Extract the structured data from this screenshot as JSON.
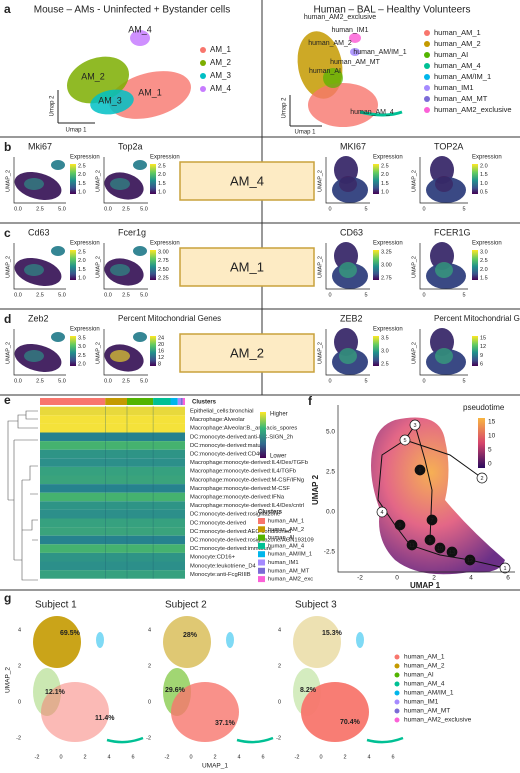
{
  "panel_a": {
    "label": "a",
    "mouse": {
      "title": "Mouse – AMs - Uninfected + Bystander cells",
      "x_label": "Umap 1",
      "y_label": "Umap 2",
      "cluster_labels": [
        "AM_4",
        "AM_2",
        "AM_3",
        "AM_1"
      ],
      "legend": [
        "AM_1",
        "AM_2",
        "AM_3",
        "AM_4"
      ]
    },
    "human": {
      "title": "Human – BAL – Healthy Volunteers",
      "x_label": "Umap 1",
      "y_label": "Umap 2",
      "cluster_labels": [
        "human_AM2_exclusive",
        "human_IM1",
        "human_AM/IM_1",
        "human_AM_2",
        "human_AM_MT",
        "human_AI",
        "human_AM_4"
      ],
      "legend": [
        "human_AM_1",
        "human_AM_2",
        "human_AI",
        "human_AM_4",
        "human_AM/IM_1",
        "human_IM1",
        "human_AM_MT",
        "human_AM2_exclusive"
      ]
    }
  },
  "feature_axes": {
    "y_label": "UMAP_2",
    "mouse_x_ticks": [
      "0.0",
      "2.5",
      "5.0"
    ],
    "human_x_ticks": [
      "0",
      "5"
    ]
  },
  "feature_rows": [
    {
      "label": "b",
      "box": "AM_4",
      "plots": [
        {
          "title": "Mki67",
          "legend_title": "Expression",
          "legend_ticks": [
            "2.5",
            "2.0",
            "1.5",
            "1.0"
          ]
        },
        {
          "title": "Top2a",
          "legend_title": "Expression",
          "legend_ticks": [
            "2.5",
            "2.0",
            "1.5",
            "1.0"
          ]
        },
        {
          "title": "MKI67",
          "legend_title": "Expression",
          "legend_ticks": [
            "2.5",
            "2.0",
            "1.5",
            "1.0"
          ]
        },
        {
          "title": "TOP2A",
          "legend_title": "Expression",
          "legend_ticks": [
            "2.0",
            "1.5",
            "1.0",
            "0.5"
          ]
        }
      ]
    },
    {
      "label": "c",
      "box": "AM_1",
      "plots": [
        {
          "title": "Cd63",
          "legend_title": "Expression",
          "legend_ticks": [
            "2.5",
            "2.0",
            "1.5",
            "1.0"
          ]
        },
        {
          "title": "Fcer1g",
          "legend_title": "Expression",
          "legend_ticks": [
            "3.00",
            "2.75",
            "2.50",
            "2.25"
          ]
        },
        {
          "title": "CD63",
          "legend_title": "Expression",
          "legend_ticks": [
            "3.25",
            "3.00",
            "2.75"
          ]
        },
        {
          "title": "FCER1G",
          "legend_title": "Expression",
          "legend_ticks": [
            "3.0",
            "2.5",
            "2.0",
            "1.5"
          ]
        }
      ]
    },
    {
      "label": "d",
      "box": "AM_2",
      "plots": [
        {
          "title": "Zeb2",
          "legend_title": "Expression",
          "legend_ticks": [
            "3.5",
            "3.0",
            "2.5",
            "2.0"
          ]
        },
        {
          "title": "Percent Mitochondrial Genes",
          "legend_ticks": [
            "24",
            "20",
            "16",
            "12",
            "8"
          ]
        },
        {
          "title": "ZEB2",
          "legend_title": "Expression",
          "legend_ticks": [
            "3.5",
            "3.0",
            "2.5"
          ]
        },
        {
          "title": "Percent Mitochondrial Genes",
          "legend_ticks": [
            "15",
            "12",
            "9",
            "6"
          ]
        }
      ]
    }
  ],
  "panel_e": {
    "label": "e",
    "clusters_bar_title": "Clusters",
    "scale_high": "Higher",
    "scale_low": "Lower",
    "rows": [
      "Epithelial_cells:bronchial",
      "Macrophage:Alveolar",
      "Macrophage:Alveolar:B._anthacis_spores",
      "DC:monocyte-derived:anti-DC-SIGN_2h",
      "DC:monocyte-derived:mature",
      "DC:monocyte-derived:CD40L",
      "Macrophage:monocyte-derived:IL4/Dex/TGFb",
      "Macrophage:monocyte-derived:IL4/TGFb",
      "Macrophage:monocyte-derived:M-CSF/IFNg",
      "Macrophage:monocyte-derived:M-CSF",
      "Macrophage:monocyte-derived:IFNa",
      "Macrophage:monocyte-derived:IL4/Dex/cntrl",
      "DC:monocyte-derived:rosiglitazone",
      "DC:monocyte-derived",
      "DC:monocyte-derived:AEC-conditioned",
      "DC:monocyte-derived:rosiglitazone/AGN193109",
      "DC:monocyte-derived:immature",
      "Monocyte:CD16+",
      "Monocyte:leukotriene_D4",
      "Monocyte:anti-FcgRIIIB"
    ],
    "clusters_legend_title": "Clusters",
    "clusters_legend": [
      "human_AM_1",
      "human_AM_2",
      "human_AI",
      "human_AM_4",
      "human_AM/IM_1",
      "human_IM1",
      "human_AM_MT",
      "human_AM2_exc"
    ]
  },
  "panel_f": {
    "label": "f",
    "legend_title": "pseudotime",
    "legend_ticks": [
      "15",
      "10",
      "5",
      "0"
    ],
    "x_label": "UMAP 1",
    "y_label": "UMAP 2",
    "x_ticks": [
      "-2",
      "0",
      "2",
      "4",
      "6"
    ],
    "y_ticks": [
      "5.0",
      "2.5",
      "0.0",
      "-2.5"
    ],
    "nodes": [
      "1",
      "2",
      "3",
      "4",
      "5",
      "6",
      "7",
      "8",
      "9",
      "10",
      "11",
      "12",
      "13"
    ]
  },
  "panel_g": {
    "label": "g",
    "x_label": "UMAP_1",
    "y_label": "UMAP_2",
    "x_ticks": [
      "-2",
      "0",
      "2",
      "4",
      "6"
    ],
    "y_ticks": [
      "4",
      "2",
      "0",
      "-2"
    ],
    "subjects": [
      {
        "title": "Subject 1",
        "percents": [
          "69.5%",
          "12.1%",
          "11.4%"
        ]
      },
      {
        "title": "Subject 2",
        "percents": [
          "28%",
          "29.6%",
          "37.1%"
        ]
      },
      {
        "title": "Subject 3",
        "percents": [
          "15.3%",
          "8.2%",
          "70.4%"
        ]
      }
    ],
    "legend": [
      "human_AM_1",
      "human_AM_2",
      "human_AI",
      "human_AM_4",
      "human_AM/IM_1",
      "human_IM1",
      "human_AM_MT",
      "human_AM2_exclusive"
    ]
  }
}
